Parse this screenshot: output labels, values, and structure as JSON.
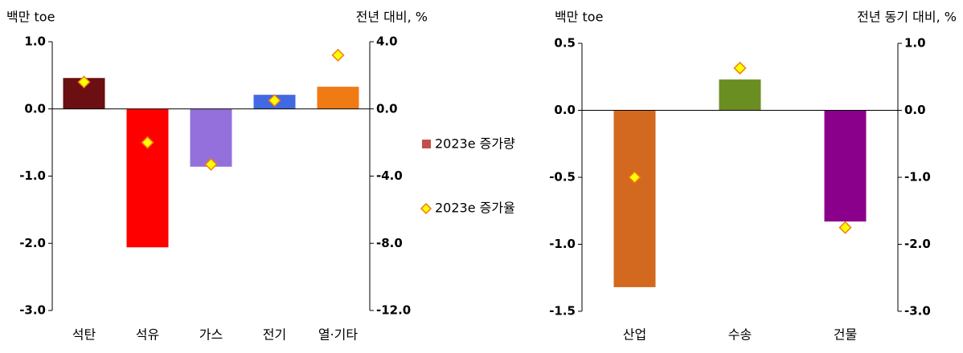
{
  "chart_data": [
    {
      "type": "bar",
      "y_label": "백만 toe",
      "y2_label": "전년 대비, %",
      "categories": [
        "석탄",
        "석유",
        "가스",
        "전기",
        "열·기타"
      ],
      "series": [
        {
          "name": "2023e 증가량",
          "color": "#c0504d",
          "colors": [
            "#6b0f12",
            "#ff0000",
            "#9370db",
            "#4169e1",
            "#f07a14"
          ],
          "values": [
            0.46,
            -2.06,
            -0.86,
            0.21,
            0.33
          ]
        },
        {
          "name": "2023e 증가율",
          "axis": "y2",
          "marker": "diamond",
          "color": "#ffff00",
          "edge_color": "#f07a14",
          "values": [
            1.6,
            -2.0,
            -3.3,
            0.5,
            3.2
          ]
        }
      ],
      "ylim": [
        -3,
        1
      ],
      "yticks": [
        {
          "value": -3,
          "label": "-3.0"
        },
        {
          "value": -2,
          "label": "-2.0"
        },
        {
          "value": -1,
          "label": "-1.0"
        },
        {
          "value": 0,
          "label": "0.0"
        },
        {
          "value": 1,
          "label": "1.0"
        }
      ],
      "y2lim": [
        -12,
        4
      ],
      "y2ticks": [
        {
          "value": -12,
          "label": "-12.0"
        },
        {
          "value": -8,
          "label": "-8.0"
        },
        {
          "value": -4,
          "label": "-4.0"
        },
        {
          "value": 0,
          "label": "0.0"
        },
        {
          "value": 4,
          "label": "4.0"
        }
      ],
      "legend": "right"
    },
    {
      "type": "bar",
      "y_label": "백만 toe",
      "y2_label": "전년 동기 대비, %",
      "categories": [
        "산업",
        "수송",
        "건물"
      ],
      "series": [
        {
          "colors": [
            "#d2691e",
            "#6b8e23",
            "#8b008b"
          ],
          "values": [
            -1.32,
            0.23,
            -0.83
          ]
        },
        {
          "axis": "y2",
          "marker": "diamond",
          "color": "#ffff00",
          "edge_color": "#f07a14",
          "values": [
            -1.0,
            0.63,
            -1.75
          ]
        }
      ],
      "ylim": [
        -1.5,
        0.5
      ],
      "yticks": [
        {
          "value": -1.5,
          "label": "-1.5"
        },
        {
          "value": -1,
          "label": "-1.0"
        },
        {
          "value": -0.5,
          "label": "-0.5"
        },
        {
          "value": 0,
          "label": "0.0"
        },
        {
          "value": 0.5,
          "label": "0.5"
        }
      ],
      "y2lim": [
        -3,
        1
      ],
      "y2ticks": [
        {
          "value": -3,
          "label": "-3.0"
        },
        {
          "value": -2,
          "label": "-2.0"
        },
        {
          "value": -1,
          "label": "-1.0"
        },
        {
          "value": 0,
          "label": "0.0"
        },
        {
          "value": 1,
          "label": "1.0"
        }
      ]
    }
  ]
}
